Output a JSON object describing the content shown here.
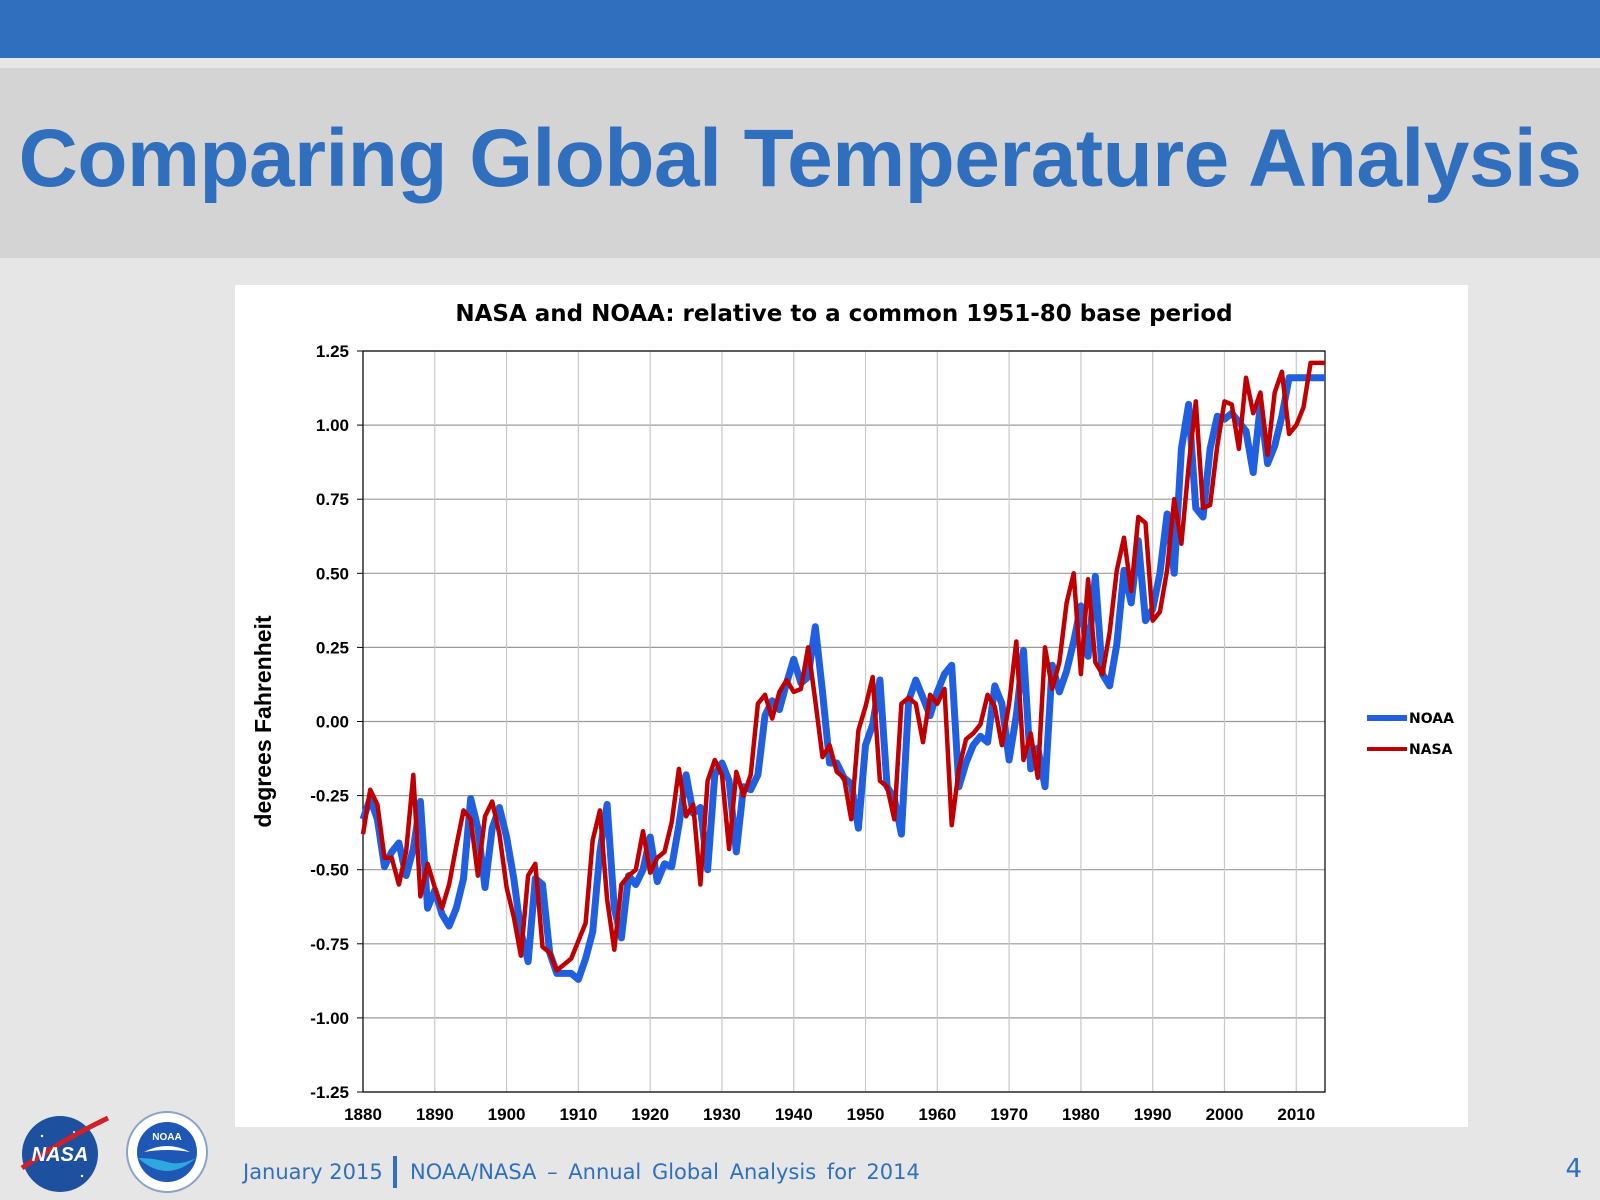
{
  "slide": {
    "title": "Comparing Global Temperature Analysis",
    "footer_date": "January 2015",
    "footer_text": "NOAA/NASA – Annual  Global  Analysis  for  2014",
    "page_number": "4",
    "accent_color": "#2f6fbd",
    "logos": [
      {
        "name": "nasa-logo",
        "text": "NASA"
      },
      {
        "name": "noaa-logo",
        "text": "NOAA"
      }
    ]
  },
  "chart_data": {
    "type": "line",
    "title": "NASA and NOAA: relative to a common 1951-80 base period",
    "xlabel": "",
    "ylabel": "degrees Fahrenheit",
    "xlim": [
      1880,
      2014
    ],
    "ylim": [
      -1.25,
      1.25
    ],
    "xticks": [
      "1880",
      "1890",
      "1900",
      "1910",
      "1920",
      "1930",
      "1940",
      "1950",
      "1960",
      "1970",
      "1980",
      "1990",
      "2000",
      "2010"
    ],
    "yticks": [
      "1.25",
      "1.00",
      "0.75",
      "0.50",
      "0.25",
      "0.00",
      "-0.25",
      "-0.50",
      "-0.75",
      "-1.00",
      "-1.25"
    ],
    "grid": true,
    "legend_position": "right",
    "series": [
      {
        "name": "NOAA",
        "color": "#1f5fe0",
        "x": [
          1880,
          1881,
          1882,
          1883,
          1884,
          1885,
          1886,
          1887,
          1888,
          1889,
          1890,
          1891,
          1892,
          1893,
          1894,
          1895,
          1896,
          1897,
          1898,
          1899,
          1900,
          1901,
          1902,
          1903,
          1904,
          1905,
          1906,
          1907,
          1908,
          1909,
          1910,
          1911,
          1912,
          1913,
          1914,
          1915,
          1916,
          1917,
          1918,
          1919,
          1920,
          1921,
          1922,
          1923,
          1924,
          1925,
          1926,
          1927,
          1928,
          1929,
          1930,
          1931,
          1932,
          1933,
          1934,
          1935,
          1936,
          1937,
          1938,
          1939,
          1940,
          1941,
          1942,
          1943,
          1944,
          1945,
          1946,
          1947,
          1948,
          1949,
          1950,
          1951,
          1952,
          1953,
          1954,
          1955,
          1956,
          1957,
          1958,
          1959,
          1960,
          1961,
          1962,
          1963,
          1964,
          1965,
          1966,
          1967,
          1968,
          1969,
          1970,
          1971,
          1972,
          1973,
          1974,
          1975,
          1976,
          1977,
          1978,
          1979,
          1980,
          1981,
          1982,
          1983,
          1984,
          1985,
          1986,
          1987,
          1988,
          1989,
          1990,
          1991,
          1992,
          1993,
          1994,
          1995,
          1996,
          1997,
          1998,
          1999,
          2000,
          2001,
          2002,
          2003,
          2004,
          2005,
          2006,
          2007,
          2008,
          2009,
          2010,
          2011,
          2012,
          2013,
          2014
        ],
        "values": [
          -0.33,
          -0.26,
          -0.33,
          -0.49,
          -0.44,
          -0.41,
          -0.52,
          -0.43,
          -0.27,
          -0.63,
          -0.57,
          -0.65,
          -0.69,
          -0.63,
          -0.53,
          -0.26,
          -0.36,
          -0.56,
          -0.36,
          -0.29,
          -0.39,
          -0.53,
          -0.71,
          -0.81,
          -0.53,
          -0.55,
          -0.78,
          -0.85,
          -0.85,
          -0.85,
          -0.87,
          -0.8,
          -0.71,
          -0.44,
          -0.28,
          -0.63,
          -0.73,
          -0.52,
          -0.55,
          -0.5,
          -0.39,
          -0.54,
          -0.48,
          -0.49,
          -0.35,
          -0.18,
          -0.31,
          -0.29,
          -0.5,
          -0.18,
          -0.14,
          -0.2,
          -0.44,
          -0.22,
          -0.23,
          -0.18,
          0.02,
          0.07,
          0.04,
          0.13,
          0.21,
          0.13,
          0.15,
          0.32,
          0.1,
          -0.14,
          -0.14,
          -0.19,
          -0.21,
          -0.36,
          -0.08,
          -0.01,
          0.14,
          -0.22,
          -0.26,
          -0.38,
          0.07,
          0.14,
          0.08,
          0.02,
          0.1,
          0.16,
          0.19,
          -0.22,
          -0.14,
          -0.08,
          -0.05,
          -0.07,
          0.12,
          0.06,
          -0.13,
          0.02,
          0.24,
          -0.16,
          -0.09,
          -0.22,
          0.19,
          0.1,
          0.17,
          0.27,
          0.39,
          0.22,
          0.49,
          0.16,
          0.12,
          0.26,
          0.51,
          0.4,
          0.61,
          0.34,
          0.38,
          0.5,
          0.7,
          0.5,
          0.92,
          1.07,
          0.72,
          0.69,
          0.92,
          1.03,
          1.02,
          1.04,
          1.01,
          0.98,
          0.84,
          1.07,
          0.87,
          0.93,
          1.03,
          1.16,
          1.16,
          1.16,
          1.16,
          1.16,
          1.16
        ]
      },
      {
        "name": "NASA",
        "color": "#c00000",
        "x": [
          1880,
          1881,
          1882,
          1883,
          1884,
          1885,
          1886,
          1887,
          1888,
          1889,
          1890,
          1891,
          1892,
          1893,
          1894,
          1895,
          1896,
          1897,
          1898,
          1899,
          1900,
          1901,
          1902,
          1903,
          1904,
          1905,
          1906,
          1907,
          1908,
          1909,
          1910,
          1911,
          1912,
          1913,
          1914,
          1915,
          1916,
          1917,
          1918,
          1919,
          1920,
          1921,
          1922,
          1923,
          1924,
          1925,
          1926,
          1927,
          1928,
          1929,
          1930,
          1931,
          1932,
          1933,
          1934,
          1935,
          1936,
          1937,
          1938,
          1939,
          1940,
          1941,
          1942,
          1943,
          1944,
          1945,
          1946,
          1947,
          1948,
          1949,
          1950,
          1951,
          1952,
          1953,
          1954,
          1955,
          1956,
          1957,
          1958,
          1959,
          1960,
          1961,
          1962,
          1963,
          1964,
          1965,
          1966,
          1967,
          1968,
          1969,
          1970,
          1971,
          1972,
          1973,
          1974,
          1975,
          1976,
          1977,
          1978,
          1979,
          1980,
          1981,
          1982,
          1983,
          1984,
          1985,
          1986,
          1987,
          1988,
          1989,
          1990,
          1991,
          1992,
          1993,
          1994,
          1995,
          1996,
          1997,
          1998,
          1999,
          2000,
          2001,
          2002,
          2003,
          2004,
          2005,
          2006,
          2007,
          2008,
          2009,
          2010,
          2011,
          2012,
          2013,
          2014
        ],
        "values": [
          -0.38,
          -0.23,
          -0.28,
          -0.46,
          -0.46,
          -0.55,
          -0.44,
          -0.18,
          -0.59,
          -0.48,
          -0.56,
          -0.63,
          -0.55,
          -0.42,
          -0.3,
          -0.33,
          -0.52,
          -0.32,
          -0.27,
          -0.38,
          -0.56,
          -0.66,
          -0.79,
          -0.52,
          -0.48,
          -0.76,
          -0.78,
          -0.84,
          -0.82,
          -0.8,
          -0.74,
          -0.68,
          -0.4,
          -0.3,
          -0.6,
          -0.77,
          -0.55,
          -0.52,
          -0.5,
          -0.37,
          -0.51,
          -0.46,
          -0.44,
          -0.34,
          -0.16,
          -0.32,
          -0.28,
          -0.55,
          -0.2,
          -0.13,
          -0.18,
          -0.43,
          -0.17,
          -0.25,
          -0.18,
          0.06,
          0.09,
          0.01,
          0.1,
          0.14,
          0.1,
          0.11,
          0.25,
          0.07,
          -0.12,
          -0.08,
          -0.17,
          -0.19,
          -0.33,
          -0.03,
          0.05,
          0.15,
          -0.2,
          -0.22,
          -0.33,
          0.06,
          0.08,
          0.06,
          -0.07,
          0.09,
          0.06,
          0.11,
          -0.35,
          -0.16,
          -0.06,
          -0.04,
          -0.01,
          0.09,
          0.05,
          -0.08,
          0.06,
          0.27,
          -0.13,
          -0.04,
          -0.19,
          0.25,
          0.11,
          0.2,
          0.4,
          0.5,
          0.16,
          0.48,
          0.2,
          0.16,
          0.3,
          0.51,
          0.62,
          0.44,
          0.69,
          0.67,
          0.34,
          0.37,
          0.51,
          0.75,
          0.6,
          0.86,
          1.08,
          0.72,
          0.73,
          0.93,
          1.08,
          1.07,
          0.92,
          1.16,
          1.04,
          1.11,
          0.9,
          1.11,
          1.18,
          0.97,
          1.0,
          1.06,
          1.21,
          1.21,
          1.21
        ]
      }
    ]
  }
}
